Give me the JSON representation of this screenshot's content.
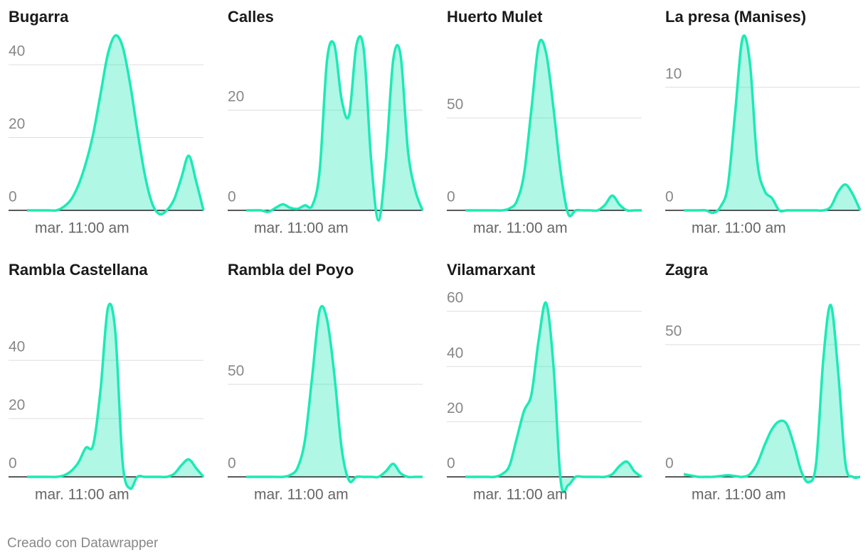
{
  "chart_data": [
    {
      "type": "area",
      "title": "Bugarra",
      "color": "#1de9b6",
      "categories": [
        null,
        null,
        null,
        null,
        null,
        null,
        null,
        "mar. 11:00 am",
        null,
        null,
        null,
        null,
        null,
        null,
        null,
        null,
        null,
        null,
        null,
        null,
        null,
        null,
        null,
        null,
        null
      ],
      "values": [
        0,
        0,
        0,
        0,
        0,
        1,
        3,
        7,
        13,
        21,
        32,
        43,
        48,
        45,
        35,
        22,
        10,
        2,
        -1,
        0,
        3,
        9,
        15,
        8,
        0
      ],
      "ylim": [
        0,
        49
      ],
      "yticks": [
        0,
        20,
        40
      ]
    },
    {
      "type": "area",
      "title": "Calles",
      "color": "#1de9b6",
      "categories": [
        null,
        null,
        null,
        null,
        null,
        null,
        null,
        "mar. 11:00 am",
        null,
        null,
        null,
        null,
        null,
        null,
        null,
        null,
        null,
        null,
        null,
        null,
        null,
        null,
        null,
        null,
        null
      ],
      "values": [
        0,
        0,
        0,
        -0.3,
        0.5,
        1.2,
        0.5,
        0.3,
        1,
        1,
        8,
        30,
        33,
        22,
        19,
        33,
        32,
        10,
        -2,
        10,
        30,
        31,
        12,
        4,
        0
      ],
      "ylim": [
        0,
        35.6
      ],
      "yticks": [
        0,
        20
      ]
    },
    {
      "type": "area",
      "title": "Huerto Mulet",
      "color": "#1de9b6",
      "categories": [
        null,
        null,
        null,
        null,
        null,
        null,
        null,
        "mar. 11:00 am",
        null,
        null,
        null,
        null,
        null,
        null,
        null,
        null,
        null,
        null,
        null,
        null,
        null,
        null,
        null,
        null,
        null
      ],
      "values": [
        0,
        0,
        0,
        0,
        0,
        0,
        1,
        5,
        20,
        55,
        90,
        85,
        55,
        20,
        -2,
        0,
        0,
        0,
        0,
        3,
        8,
        3,
        0,
        0,
        0
      ],
      "ylim": [
        0,
        96.5
      ],
      "yticks": [
        0,
        50
      ]
    },
    {
      "type": "area",
      "title": "La presa (Manises)",
      "color": "#1de9b6",
      "categories": [
        null,
        null,
        null,
        null,
        null,
        null,
        null,
        "mar. 11:00 am",
        null,
        null,
        null,
        null,
        null,
        null,
        null,
        null,
        null,
        null,
        null,
        null,
        null,
        null,
        null,
        null,
        null
      ],
      "values": [
        0,
        0,
        0,
        0,
        -0.2,
        0.3,
        2,
        8,
        14,
        12,
        4,
        1.6,
        1,
        0,
        0,
        0,
        0,
        0,
        0,
        0,
        0.3,
        1.5,
        2.1,
        1.3,
        0
      ],
      "ylim": [
        0,
        14.5
      ],
      "yticks": [
        0,
        10
      ]
    },
    {
      "type": "area",
      "title": "Rambla Castellana",
      "color": "#1de9b6",
      "categories": [
        null,
        null,
        null,
        null,
        null,
        null,
        null,
        "mar. 11:00 am",
        null,
        null,
        null,
        null,
        null,
        null,
        null,
        null,
        null,
        null,
        null,
        null,
        null,
        null,
        null,
        null,
        null
      ],
      "values": [
        0,
        0,
        0,
        0,
        0,
        0.5,
        2,
        5,
        10,
        11,
        30,
        58,
        50,
        5,
        -4,
        0,
        0,
        0,
        0,
        0,
        1,
        4,
        6,
        3,
        0
      ],
      "ylim": [
        0,
        61
      ],
      "yticks": [
        0,
        20,
        40
      ]
    },
    {
      "type": "area",
      "title": "Rambla del Poyo",
      "color": "#1de9b6",
      "categories": [
        null,
        null,
        null,
        null,
        null,
        null,
        null,
        "mar. 11:00 am",
        null,
        null,
        null,
        null,
        null,
        null,
        null,
        null,
        null,
        null,
        null,
        null,
        null,
        null,
        null,
        null,
        null
      ],
      "values": [
        0,
        0,
        0,
        0,
        0,
        0,
        1,
        5,
        20,
        55,
        90,
        85,
        55,
        15,
        -2,
        0,
        0,
        0,
        0,
        3,
        7,
        2,
        0,
        0,
        0
      ],
      "ylim": [
        0,
        96
      ],
      "yticks": [
        0,
        50
      ]
    },
    {
      "type": "area",
      "title": "Vilamarxant",
      "color": "#1de9b6",
      "categories": [
        null,
        null,
        null,
        null,
        null,
        null,
        null,
        "mar. 11:00 am",
        null,
        null,
        null,
        null,
        null,
        null,
        null,
        null,
        null,
        null,
        null,
        null,
        null,
        null,
        null,
        null,
        null
      ],
      "values": [
        0,
        0,
        0,
        0,
        0,
        1,
        4,
        14,
        24,
        30,
        50,
        63,
        40,
        -2,
        -3,
        0,
        0,
        0,
        0,
        0,
        1,
        4,
        5.5,
        2,
        0
      ],
      "ylim": [
        0,
        64.4
      ],
      "yticks": [
        0,
        20,
        40,
        60
      ]
    },
    {
      "type": "area",
      "title": "Zagra",
      "color": "#1de9b6",
      "categories": [
        null,
        null,
        null,
        null,
        null,
        null,
        null,
        "mar. 11:00 am",
        null,
        null,
        null,
        null,
        null,
        null,
        null,
        null,
        null,
        null,
        null,
        null,
        null,
        null,
        null,
        null,
        null
      ],
      "values": [
        1,
        0.5,
        0,
        0,
        0,
        0.3,
        0.6,
        0.3,
        0,
        1,
        5,
        12,
        18,
        21,
        20,
        12,
        2,
        -2,
        5,
        45,
        65,
        40,
        5,
        0,
        0
      ],
      "ylim": [
        0,
        67.2
      ],
      "yticks": [
        0,
        50
      ]
    }
  ],
  "footer": "Creado con Datawrapper"
}
